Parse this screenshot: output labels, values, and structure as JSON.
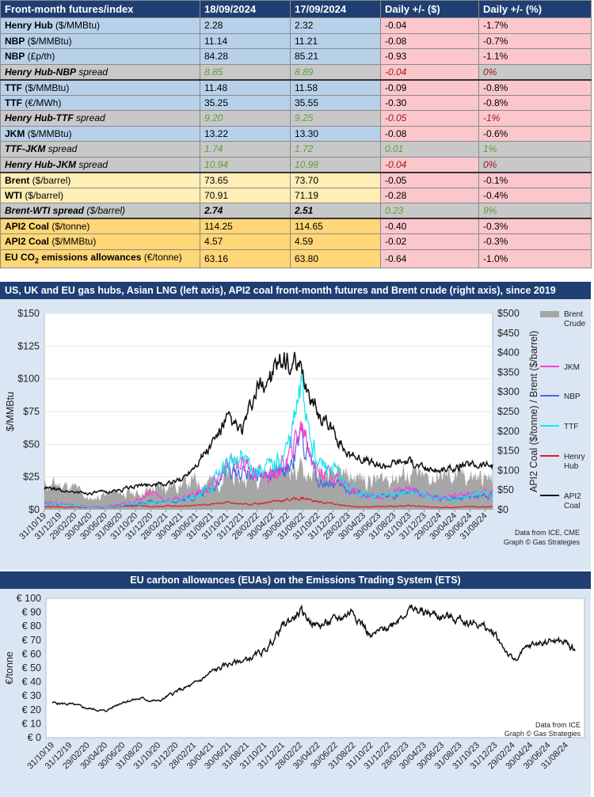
{
  "table": {
    "headers": [
      "Front-month futures/index",
      "18/09/2024",
      "17/09/2024",
      "Daily +/- ($)",
      "Daily +/- (%)"
    ],
    "rows": [
      {
        "style": "blue",
        "bold": "Henry Hub",
        "rest": " ($/MMBtu)",
        "v1": "2.28",
        "v2": "2.32",
        "d": "-0.04",
        "p": "-1.7%"
      },
      {
        "style": "blue",
        "bold": "NBP",
        "rest": " ($/MMBtu)",
        "v1": "11.14",
        "v2": "11.21",
        "d": "-0.08",
        "p": "-0.7%"
      },
      {
        "style": "blue",
        "bold": "NBP",
        "rest": " (£p/th)",
        "v1": "84.28",
        "v2": "85.21",
        "d": "-0.93",
        "p": "-1.1%"
      },
      {
        "style": "grey",
        "bold": "Henry Hub-NBP",
        "rest": "  spread",
        "v1": "8.85",
        "v2": "8.89",
        "d": "-0.04",
        "p": "0%"
      },
      {
        "style": "blue",
        "bold": "TTF",
        "rest": " ($/MMBtu)",
        "v1": "11.48",
        "v2": "11.58",
        "d": "-0.09",
        "p": "-0.8%"
      },
      {
        "style": "blue",
        "bold": "TTF",
        "rest": " (€/MWh)",
        "v1": "35.25",
        "v2": "35.55",
        "d": "-0.30",
        "p": "-0.8%"
      },
      {
        "style": "grey",
        "bold": "Henry Hub-TTF",
        "rest": "  spread",
        "v1": "9.20",
        "v2": "9.25",
        "d": "-0.05",
        "p": "-1%"
      },
      {
        "style": "blue",
        "bold": "JKM",
        "rest": " ($/MMBtu)",
        "v1": "13.22",
        "v2": "13.30",
        "d": "-0.08",
        "p": "-0.6%"
      },
      {
        "style": "grey",
        "bold": "TTF-JKM",
        "rest": "  spread",
        "v1": "1.74",
        "v2": "1.72",
        "d": "0.01",
        "p": "1%"
      },
      {
        "style": "grey",
        "bold": "Henry Hub-JKM",
        "rest": "  spread",
        "v1": "10.94",
        "v2": "10.98",
        "d": "-0.04",
        "p": "0%"
      },
      {
        "style": "yellow",
        "bold": "Brent",
        "rest": " ($/barrel)",
        "v1": "73.65",
        "v2": "73.70",
        "d": "-0.05",
        "p": "-0.1%"
      },
      {
        "style": "yellow",
        "bold": "WTI",
        "rest": " ($/barrel)",
        "v1": "70.91",
        "v2": "71.19",
        "d": "-0.28",
        "p": "-0.4%"
      },
      {
        "style": "grey-bold",
        "bold": "Brent-WTI spread",
        "rest": "  ($/barrel)",
        "v1": "2.74",
        "v2": "2.51",
        "d": "0.23",
        "p": "9%"
      },
      {
        "style": "orange",
        "bold": "API2 Coal",
        "rest": " ($/tonne)",
        "v1": "114.25",
        "v2": "114.65",
        "d": "-0.40",
        "p": "-0.3%"
      },
      {
        "style": "orange",
        "bold": "API2 Coal",
        "rest": " ($/MMBtu)",
        "v1": "4.57",
        "v2": "4.59",
        "d": "-0.02",
        "p": "-0.3%"
      },
      {
        "style": "orange",
        "bold": "EU CO",
        "sub": "2",
        "bold2": " emissions allowances",
        "rest": " (€/tonne)",
        "v1": "63.16",
        "v2": "63.80",
        "d": "-0.64",
        "p": "-1.0%"
      }
    ]
  },
  "chart1": {
    "banner": "US, UK and EU gas hubs, Asian LNG (left axis), API2 coal front-month futures and Brent crude (right axis), since 2019",
    "ylabel_left": "$/MMBtu",
    "ylabel_right": "API2 Coal ($/tonne) / Brent ($/barrel)",
    "source1": "Data from ICE, CME",
    "source2": "Graph © Gas Strategies",
    "legend": [
      "Brent Crude",
      "JKM",
      "NBP",
      "TTF",
      "Henry Hub",
      "API2 Coal"
    ],
    "colors": {
      "Brent": "#a6a6a6",
      "JKM": "#ff3fcf",
      "NBP": "#4a66e6",
      "TTF": "#12e6f0",
      "HenryHub": "#e21a1a",
      "API2": "#111111"
    }
  },
  "chart2": {
    "banner": "EU carbon allowances (EUAs) on the Emissions Trading System (ETS)",
    "ylabel": "€/tonne",
    "source1": "Data from ICE",
    "source2": "Graph © Gas Strategies",
    "color": "#111111"
  },
  "chart_data": [
    {
      "type": "line",
      "title": "US, UK and EU gas hubs, Asian LNG (left axis), API2 coal front-month futures and Brent crude (right axis), since 2019",
      "ylabel": "$/MMBtu",
      "y2label": "API2 Coal ($/tonne) / Brent ($/barrel)",
      "ylim": [
        0,
        150
      ],
      "y2lim": [
        0,
        500
      ],
      "yticks": [
        "$0",
        "$25",
        "$50",
        "$75",
        "$100",
        "$125",
        "$150"
      ],
      "y2ticks": [
        "$0",
        "$50",
        "$100",
        "$150",
        "$200",
        "$250",
        "$300",
        "$350",
        "$400",
        "$450",
        "$500"
      ],
      "xticks": [
        "31/10/19",
        "31/12/19",
        "29/02/20",
        "30/04/20",
        "30/06/20",
        "31/08/20",
        "31/10/20",
        "31/12/20",
        "28/02/21",
        "30/04/21",
        "30/06/21",
        "31/08/21",
        "31/10/21",
        "31/12/21",
        "28/02/22",
        "30/04/22",
        "30/06/22",
        "31/08/22",
        "31/10/22",
        "31/12/22",
        "28/02/23",
        "30/04/23",
        "30/06/23",
        "31/08/23",
        "31/10/23",
        "31/12/23",
        "29/02/24",
        "30/04/24",
        "30/06/24",
        "31/08/24"
      ],
      "series_x": [
        "2019-10",
        "2019-12",
        "2020-02",
        "2020-04",
        "2020-06",
        "2020-08",
        "2020-10",
        "2020-12",
        "2021-02",
        "2021-04",
        "2021-06",
        "2021-08",
        "2021-10",
        "2021-12",
        "2022-02",
        "2022-04",
        "2022-06",
        "2022-08",
        "2022-10",
        "2022-12",
        "2023-02",
        "2023-04",
        "2023-06",
        "2023-08",
        "2023-10",
        "2023-12",
        "2024-02",
        "2024-04",
        "2024-06",
        "2024-08",
        "2024-09"
      ],
      "series": [
        {
          "name": "Henry Hub",
          "axis": "left",
          "values": [
            2.5,
            2.2,
            1.9,
            1.7,
            1.7,
            2.3,
            3.0,
            2.6,
            3.0,
            2.8,
            3.4,
            4.2,
            5.5,
            4.0,
            4.6,
            6.5,
            7.5,
            9.0,
            6.0,
            4.5,
            2.5,
            2.2,
            2.4,
            2.6,
            3.0,
            2.5,
            1.8,
            1.8,
            2.6,
            2.1,
            2.3
          ]
        },
        {
          "name": "NBP",
          "axis": "left",
          "values": [
            5.0,
            4.0,
            3.0,
            1.8,
            2.0,
            3.0,
            4.5,
            6.5,
            6.0,
            7.5,
            10.0,
            16.0,
            30.0,
            28.0,
            27.0,
            25.0,
            30.0,
            55.0,
            22.0,
            20.0,
            15.0,
            11.0,
            9.0,
            11.0,
            14.0,
            11.0,
            8.0,
            9.0,
            10.5,
            11.5,
            11.1
          ]
        },
        {
          "name": "TTF",
          "axis": "left",
          "values": [
            4.7,
            4.0,
            3.0,
            1.8,
            2.0,
            3.0,
            4.5,
            6.5,
            6.0,
            7.5,
            10.0,
            18.0,
            35.0,
            40.0,
            30.0,
            32.0,
            45.0,
            90.0,
            35.0,
            30.0,
            17.0,
            12.0,
            10.0,
            11.0,
            14.0,
            11.0,
            8.0,
            9.0,
            10.5,
            11.5,
            11.5
          ]
        },
        {
          "name": "JKM",
          "axis": "left",
          "values": [
            5.5,
            5.0,
            3.2,
            2.2,
            2.2,
            4.0,
            6.0,
            15.0,
            7.0,
            9.0,
            12.5,
            18.0,
            32.0,
            38.0,
            28.0,
            25.0,
            38.0,
            65.0,
            30.0,
            28.0,
            18.0,
            12.0,
            10.0,
            12.5,
            15.0,
            12.0,
            8.5,
            10.0,
            12.0,
            13.5,
            13.2
          ]
        },
        {
          "name": "Brent Crude",
          "axis": "right",
          "values": [
            60,
            65,
            55,
            25,
            40,
            44,
            40,
            50,
            62,
            65,
            73,
            71,
            83,
            78,
            95,
            105,
            115,
            95,
            90,
            83,
            83,
            80,
            75,
            85,
            90,
            78,
            82,
            88,
            85,
            78,
            73.7
          ]
        },
        {
          "name": "API2 Coal",
          "axis": "right",
          "values": [
            55,
            50,
            45,
            42,
            45,
            50,
            60,
            65,
            65,
            75,
            120,
            165,
            230,
            200,
            300,
            350,
            380,
            340,
            250,
            200,
            140,
            130,
            110,
            120,
            125,
            105,
            100,
            105,
            115,
            115,
            114
          ]
        }
      ]
    },
    {
      "type": "line",
      "title": "EU carbon allowances (EUAs) on the Emissions Trading System (ETS)",
      "ylabel": "€/tonne",
      "ylim": [
        0,
        100
      ],
      "yticks": [
        "€ 0",
        "€ 10",
        "€ 20",
        "€ 30",
        "€ 40",
        "€ 50",
        "€ 60",
        "€ 70",
        "€ 80",
        "€ 90",
        "€ 100"
      ],
      "xticks": [
        "31/10/19",
        "31/12/19",
        "29/02/20",
        "30/04/20",
        "30/06/20",
        "31/08/20",
        "31/10/20",
        "31/12/20",
        "28/02/21",
        "30/04/21",
        "30/06/21",
        "31/08/21",
        "31/10/21",
        "31/12/21",
        "28/02/22",
        "30/04/22",
        "30/06/22",
        "31/08/22",
        "31/10/22",
        "31/12/22",
        "28/02/23",
        "30/04/23",
        "30/06/23",
        "31/08/23",
        "31/10/23",
        "31/12/23",
        "29/02/24",
        "30/04/24",
        "30/06/24",
        "31/08/24"
      ],
      "series_x": [
        "2019-10",
        "2019-12",
        "2020-02",
        "2020-04",
        "2020-06",
        "2020-08",
        "2020-10",
        "2020-12",
        "2021-02",
        "2021-04",
        "2021-06",
        "2021-08",
        "2021-10",
        "2021-12",
        "2022-02",
        "2022-04",
        "2022-06",
        "2022-08",
        "2022-10",
        "2022-12",
        "2023-02",
        "2023-04",
        "2023-06",
        "2023-08",
        "2023-10",
        "2023-12",
        "2024-02",
        "2024-04",
        "2024-06",
        "2024-08",
        "2024-09"
      ],
      "series": [
        {
          "name": "EUA",
          "values": [
            25,
            24,
            21,
            19,
            26,
            28,
            26,
            33,
            38,
            47,
            53,
            56,
            62,
            80,
            90,
            80,
            84,
            92,
            72,
            80,
            92,
            90,
            87,
            85,
            82,
            74,
            55,
            66,
            70,
            68,
            63.2
          ]
        }
      ]
    }
  ]
}
